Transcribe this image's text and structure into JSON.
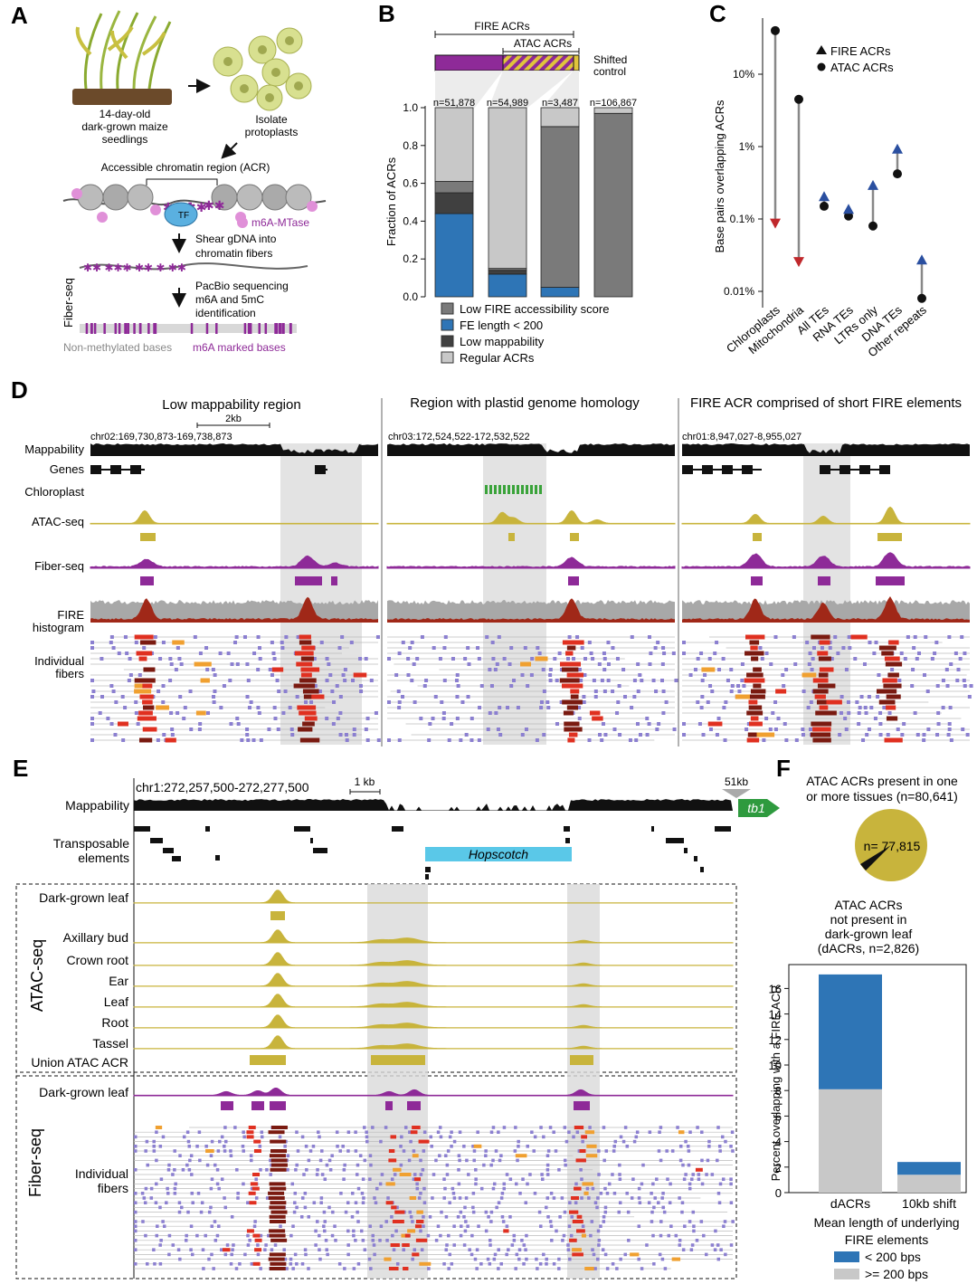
{
  "colors": {
    "atac": "#c8b43c",
    "fiber": "#8e2a98",
    "fire_dark": "#7a1a10",
    "fire_red": "#e03020",
    "fire_orange": "#f0a030",
    "nuc_purple": "#8b7fd0",
    "fire_blue": "#2e75b6",
    "gray_light": "#c8c8c8",
    "gray_mid": "#7a7a7a",
    "gray_dark": "#404040",
    "red_marker": "#c0282c",
    "blue_marker": "#2a4fa0",
    "chloroplast_green": "#3aa33a",
    "hopscotch": "#5ac8e8",
    "tb1_green": "#2e9a3e"
  },
  "panelA": {
    "letter": "A",
    "seedlings_label": [
      "14-day-old",
      "dark-grown maize",
      "seedlings"
    ],
    "isolate_label": [
      "Isolate",
      "protoplasts"
    ],
    "acr_label": "Accessible chromatin region (ACR)",
    "tf_label": "TF",
    "mtase_label": "m6A-MTase",
    "shear_label": [
      "Shear gDNA into",
      "chromatin fibers"
    ],
    "pacbio_label": [
      "PacBio sequencing",
      "m6A and 5mC",
      "identification"
    ],
    "fiberseq_label": "Fiber-seq",
    "nonmeth_label": "Non-methylated bases",
    "m6a_label": "m6A marked bases"
  },
  "panelB": {
    "letter": "B",
    "fire_acrs_label": "FIRE ACRs",
    "atac_acrs_label": "ATAC ACRs",
    "shifted_label": [
      "Shifted",
      "control"
    ],
    "legend": [
      "Low FIRE accessibility  score",
      "FE length < 200",
      "Low mappability",
      "Regular ACRs"
    ]
  },
  "panelC": {
    "letter": "C",
    "legend": [
      "FIRE ACRs",
      "ATAC ACRs"
    ]
  },
  "panelD": {
    "letter": "D",
    "titles": [
      "Low mappability region",
      "Region with plastid genome homology",
      "FIRE ACR comprised of short FIRE elements"
    ],
    "coords": [
      "chr02:169,730,873-169,738,873",
      "chr03:172,524,522-172,532,522",
      "chr01:8,947,027-8,955,027"
    ],
    "scale_label": "2kb",
    "track_labels": [
      "Mappability",
      "Genes",
      "Chloroplast",
      "ATAC-seq",
      "Fiber-seq",
      "FIRE",
      "histogram",
      "Individual",
      "fibers"
    ]
  },
  "panelE": {
    "letter": "E",
    "coord": "chr1:272,257,500-272,277,500",
    "scale_label": "1 kb",
    "distance_label": "51kb",
    "gene_label": "tb1",
    "te_label": "Hopscotch",
    "mappability_label": "Mappability",
    "te_track_label": [
      "Transposable",
      "elements"
    ],
    "atac_group_label": "ATAC-seq",
    "atac_tracks": [
      "Dark-grown leaf",
      "Axillary bud",
      "Crown root",
      "Ear",
      "Leaf",
      "Root",
      "Tassel",
      "Union ATAC ACR"
    ],
    "fiber_group_label": "Fiber-seq",
    "fiber_track": "Dark-grown leaf",
    "fibers_label": [
      "Individual",
      "fibers"
    ]
  },
  "panelF": {
    "letter": "F",
    "title": [
      "ATAC ACRs present in one",
      "or more tissues (n=80,641)"
    ],
    "pie_label": "n= 77,815",
    "dacr_label": [
      "ATAC ACRs",
      "not present in",
      "dark-grown leaf",
      "(dACRs, n=2,826)"
    ],
    "legend_title": [
      "Mean length of underlying",
      "FIRE elements"
    ],
    "legend": [
      "< 200 bps",
      ">= 200 bps"
    ]
  },
  "chart_data": [
    {
      "type": "bar",
      "panel": "B",
      "stacked": true,
      "categories": [
        "n=51,878",
        "n=54,989",
        "n=3,487",
        "n=106,867"
      ],
      "series": [
        {
          "name": "FE length < 200",
          "values": [
            0.44,
            0.12,
            0.05,
            0.0
          ]
        },
        {
          "name": "Low mappability",
          "values": [
            0.11,
            0.02,
            0.0,
            0.0
          ]
        },
        {
          "name": "Low FIRE accessibility  score",
          "values": [
            0.06,
            0.01,
            0.85,
            0.97
          ]
        },
        {
          "name": "Regular ACRs",
          "values": [
            0.39,
            0.85,
            0.1,
            0.03
          ]
        }
      ],
      "ylabel": "Fraction of ACRs",
      "ylim": [
        0,
        1
      ],
      "yticks": [
        "0.0",
        "0.2",
        "0.4",
        "0.6",
        "0.8",
        "1.0"
      ]
    },
    {
      "type": "scatter",
      "panel": "C",
      "categories": [
        "Chloroplasts",
        "Mitochondria",
        "All TEs",
        "RNA TEs",
        "LTRs only",
        "DNA TEs",
        "Other repeats"
      ],
      "series": [
        {
          "name": "ATAC ACRs",
          "values": [
            40,
            4.5,
            0.15,
            0.11,
            0.08,
            0.42,
            0.008
          ]
        },
        {
          "name": "FIRE ACRs",
          "values": [
            0.085,
            0.025,
            0.21,
            0.14,
            0.3,
            0.95,
            0.028
          ]
        }
      ],
      "ylabel": "Base pairs overlapping ACRs",
      "yscale": "log",
      "ylim": [
        0.005,
        60
      ],
      "yticks": [
        "0.01%",
        "0.1%",
        "1%",
        "10%"
      ]
    },
    {
      "type": "bar",
      "panel": "F",
      "stacked": true,
      "categories": [
        "dACRs",
        "10kb shift"
      ],
      "series": [
        {
          "name": ">= 200 bps",
          "values": [
            8.1,
            1.4
          ]
        },
        {
          "name": "< 200 bps",
          "values": [
            9.0,
            1.0
          ]
        }
      ],
      "ylabel": "Percent overlapping with a FIRE ACR",
      "ylim": [
        0,
        17.2
      ],
      "yticks": [
        "0",
        "2",
        "4",
        "6",
        "8",
        "10",
        "12",
        "14",
        "16"
      ]
    }
  ]
}
